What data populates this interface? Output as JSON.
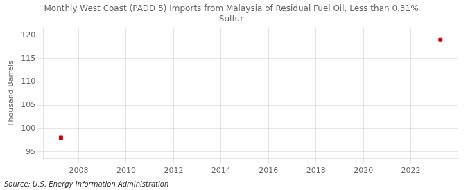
{
  "chart_data": {
    "type": "scatter",
    "title": "Monthly West Coast (PADD 5) Imports from Malaysia of Residual Fuel Oil, Less than 0.31%\nSulfur",
    "ylabel": "Thousand Barrels",
    "annotations": [
      "Source: U.S. Energy Information Administration"
    ],
    "x": [
      2007.25,
      2023.25
    ],
    "values": [
      98,
      119
    ],
    "color": "#cc0000",
    "marker": "square",
    "xlim": [
      2006.5,
      2024.0
    ],
    "ylim": [
      93.5,
      121.5
    ],
    "xticks": [
      2008,
      2010,
      2012,
      2014,
      2016,
      2018,
      2020,
      2022
    ],
    "yticks": [
      95,
      100,
      105,
      110,
      115,
      120
    ],
    "grid": true
  }
}
